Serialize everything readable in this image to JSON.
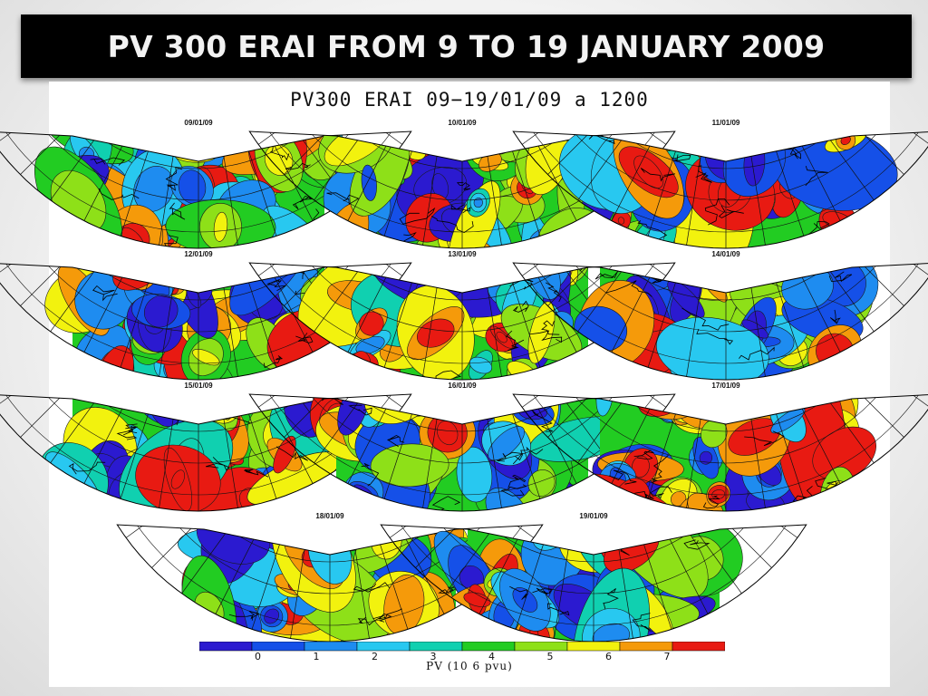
{
  "slide_title": "PV 300 ERAI FROM 9 TO 19 JANUARY 2009",
  "figure_title": "PV300 ERAI 09−19/01/09 a 1200",
  "maps": [
    {
      "date": "09/01/09",
      "seed": 11
    },
    {
      "date": "10/01/09",
      "seed": 23
    },
    {
      "date": "11/01/09",
      "seed": 37
    },
    {
      "date": "12/01/09",
      "seed": 41
    },
    {
      "date": "13/01/09",
      "seed": 53
    },
    {
      "date": "14/01/09",
      "seed": 67
    },
    {
      "date": "15/01/09",
      "seed": 71
    },
    {
      "date": "16/01/09",
      "seed": 83
    },
    {
      "date": "17/01/09",
      "seed": 97
    },
    {
      "date": "18/01/09",
      "seed": 101
    },
    {
      "date": "19/01/09",
      "seed": 113
    }
  ],
  "colorbar": {
    "colors": [
      "#2b1ad0",
      "#1550e8",
      "#1e8cf0",
      "#28c8f0",
      "#10d0b0",
      "#22cc22",
      "#8ee018",
      "#f2f20e",
      "#f59a0a",
      "#e81a12"
    ],
    "ticks": [
      "0",
      "1",
      "2",
      "3",
      "4",
      "5",
      "6",
      "7"
    ],
    "label": "PV (10 6 pvu)"
  }
}
